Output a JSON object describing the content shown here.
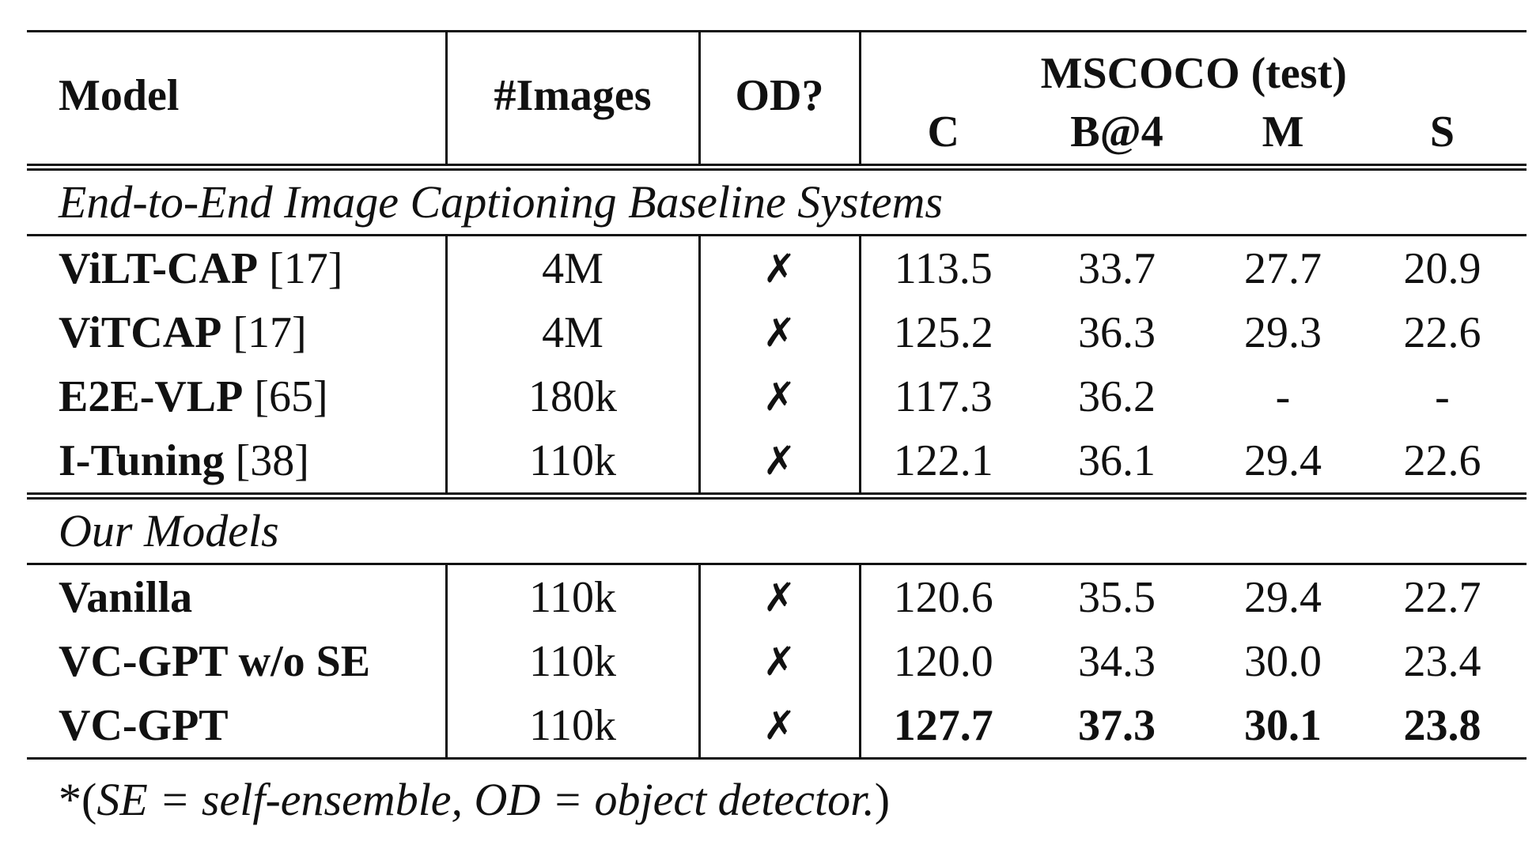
{
  "header": {
    "model": "Model",
    "images": "#Images",
    "od": "OD?",
    "dataset": "MSCOCO (test)",
    "metrics": [
      "C",
      "B@4",
      "M",
      "S"
    ]
  },
  "sections": [
    {
      "title": "End-to-End Image Captioning Baseline Systems",
      "rows": [
        {
          "name": "ViLT-CAP",
          "ref": "[17]",
          "images": "4M",
          "od": "✗",
          "C": "113.5",
          "B4": "33.7",
          "M": "27.7",
          "S": "20.9"
        },
        {
          "name": "ViTCAP",
          "ref": "[17]",
          "images": "4M",
          "od": "✗",
          "C": "125.2",
          "B4": "36.3",
          "M": "29.3",
          "S": "22.6"
        },
        {
          "name": "E2E-VLP",
          "ref": "[65]",
          "images": "180k",
          "od": "✗",
          "C": "117.3",
          "B4": "36.2",
          "M": "-",
          "S": "-"
        },
        {
          "name": "I-Tuning",
          "ref": "[38]",
          "images": "110k",
          "od": "✗",
          "C": "122.1",
          "B4": "36.1",
          "M": "29.4",
          "S": "22.6"
        }
      ]
    },
    {
      "title": "Our Models",
      "rows": [
        {
          "name": "Vanilla",
          "ref": "",
          "images": "110k",
          "od": "✗",
          "C": "120.6",
          "B4": "35.5",
          "M": "29.4",
          "S": "22.7"
        },
        {
          "name": "VC-GPT w/o SE",
          "ref": "",
          "images": "110k",
          "od": "✗",
          "C": "120.0",
          "B4": "34.3",
          "M": "30.0",
          "S": "23.4"
        },
        {
          "name": "VC-GPT",
          "ref": "",
          "images": "110k",
          "od": "✗",
          "C": "127.7",
          "B4": "37.3",
          "M": "30.1",
          "S": "23.8"
        }
      ]
    }
  ],
  "footnote": {
    "prefix": "*(",
    "text": "SE = self-ensemble, OD = object detector.",
    "suffix": ")"
  }
}
